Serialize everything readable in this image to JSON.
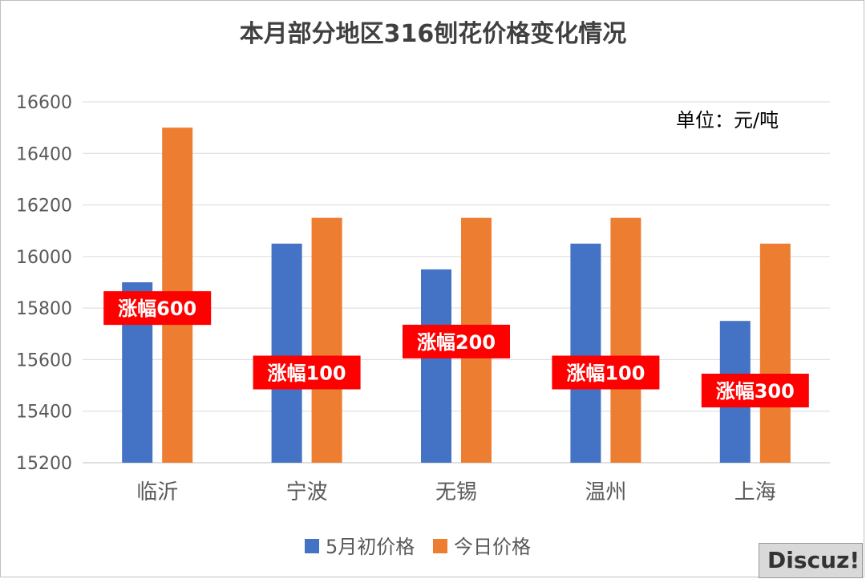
{
  "chart_data": {
    "type": "bar",
    "title": "本月部分地区316刨花价格变化情况",
    "unit_label": "单位：元/吨",
    "categories": [
      "临沂",
      "宁波",
      "无锡",
      "温州",
      "上海"
    ],
    "series": [
      {
        "name": "5月初价格",
        "color": "#4472c4",
        "values": [
          15900,
          16050,
          15950,
          16050,
          15750
        ]
      },
      {
        "name": "今日价格",
        "color": "#ed7d31",
        "values": [
          16500,
          16150,
          16150,
          16150,
          16050
        ]
      }
    ],
    "annotations": [
      {
        "category": "临沂",
        "text": "涨幅600",
        "y": 15800
      },
      {
        "category": "宁波",
        "text": "涨幅100",
        "y": 15550
      },
      {
        "category": "无锡",
        "text": "涨幅200",
        "y": 15670
      },
      {
        "category": "温州",
        "text": "涨幅100",
        "y": 15550
      },
      {
        "category": "上海",
        "text": "涨幅300",
        "y": 15480
      }
    ],
    "ylim": [
      15200,
      16600
    ],
    "yticks": [
      15200,
      15400,
      15600,
      15800,
      16000,
      16200,
      16400,
      16600
    ],
    "grid": true,
    "legend_position": "bottom",
    "annotation_color": "#ff0000"
  },
  "watermark": "Discuz!"
}
